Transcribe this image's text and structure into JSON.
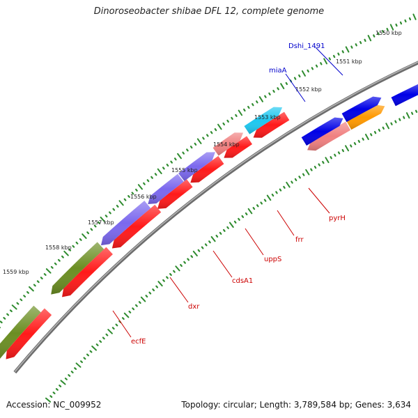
{
  "title": "Dinoroseobacter shibae DFL 12, complete genome",
  "footer": {
    "accession": "Accession: NC_009952",
    "summary": "Topology: circular; Length: 3,789,584 bp; Genes: 3,634"
  },
  "colors": {
    "backbone": "#8c8c8c",
    "ticks": "#2e8b2e",
    "gene_red": "#ff1a1a",
    "gene_pink": "#f08080",
    "gene_orange": "#ff9900",
    "gene_blue": "#0000e6",
    "gene_purple": "#7b68ee",
    "gene_cyan": "#1ec8f0",
    "gene_olive": "#6b8e23",
    "label_red": "#cc0000",
    "label_blue": "#0000cc"
  },
  "scale_labels": [
    "1550 kbp",
    "1551 kbp",
    "1552 kbp",
    "1553 kbp",
    "1554 kbp",
    "1555 kbp",
    "1556 kbp",
    "1557 kbp",
    "1558 kbp",
    "1559 kbp"
  ],
  "gene_labels": [
    "Dshi_1491",
    "miaA",
    "pyrH",
    "frr",
    "uppS",
    "cdsA1",
    "dxr",
    "ecfE"
  ]
}
